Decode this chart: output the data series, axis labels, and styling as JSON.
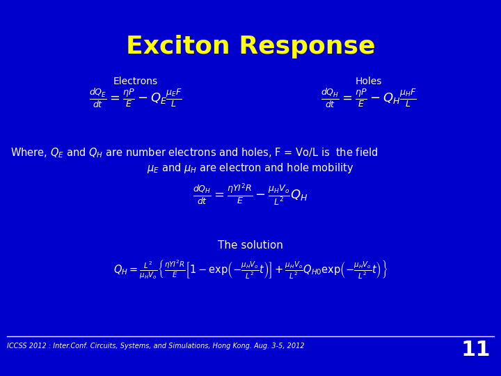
{
  "background_color": "#0000cc",
  "title": "Exciton Response",
  "title_color": "#ffff00",
  "title_fontsize": 26,
  "white_color": "#ffffff",
  "footer_text": "ICCSS 2012 : Inter.Conf. Circuits, Systems, and Simulations, Hong Kong. Aug. 3-5, 2012",
  "page_number": "11",
  "electrons_label": "Electrons",
  "holes_label": "Holes",
  "solution_label": "The solution"
}
